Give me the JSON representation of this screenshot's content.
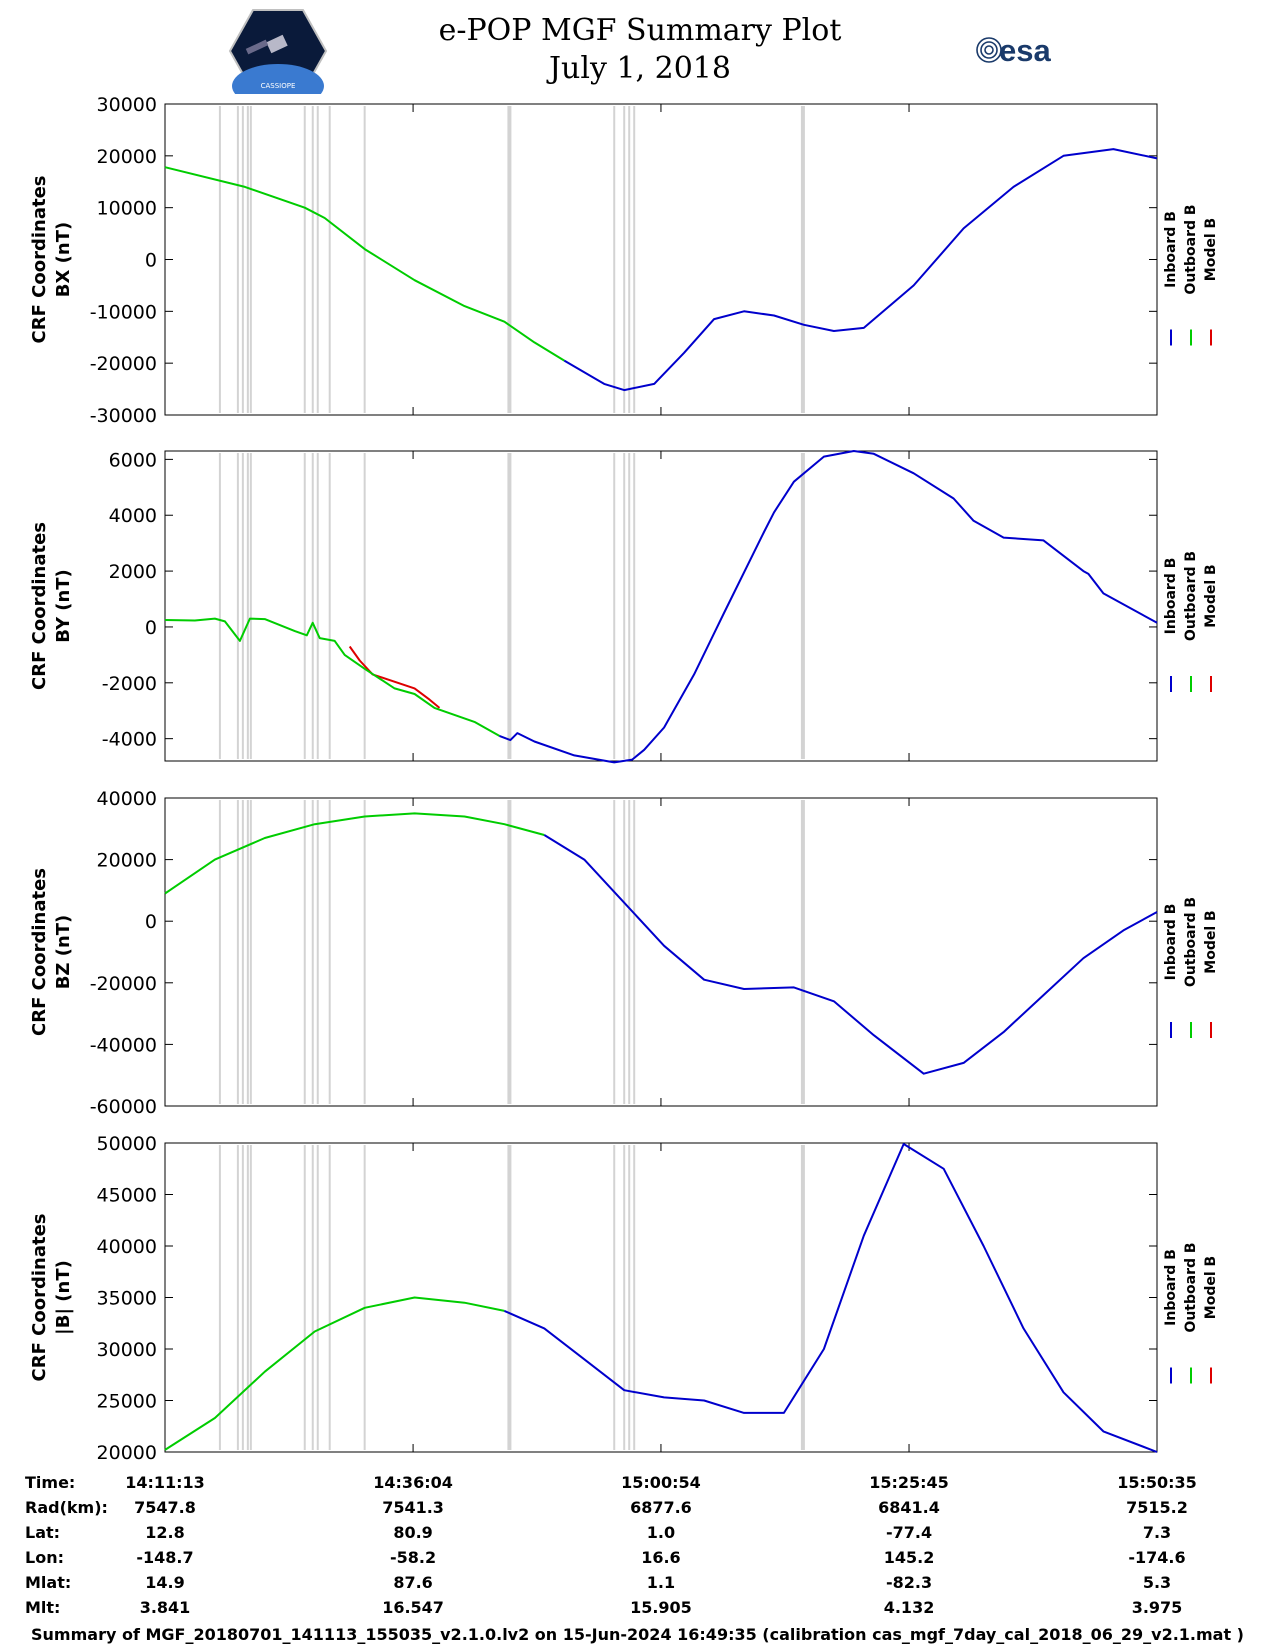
{
  "header": {
    "title_line1": "e-POP MGF Summary Plot",
    "title_line2": "July 1, 2018",
    "left_logo": "CASSIOPE",
    "right_logo": "esa"
  },
  "colors": {
    "inboard": "#0000cc",
    "outboard": "#00cc00",
    "model": "#dd0000",
    "mask": "#d3d3d3"
  },
  "chart_data": {
    "type": "line",
    "shared_x": {
      "time_range_min": [
        0,
        99.37
      ],
      "tick_positions_min": [
        0,
        24.85,
        49.68,
        74.53,
        99.37
      ],
      "tick_labels": [
        "14:11:13",
        "14:36:04",
        "15:00:54",
        "15:25:45",
        "15:50:35"
      ]
    },
    "legend": [
      "Inboard B",
      "Outboard B",
      "Model B"
    ],
    "gray_bands_min": [
      5.5,
      7.3,
      7.8,
      8.3,
      8.6,
      14,
      14.8,
      15.3,
      16.5,
      20,
      34.5,
      45,
      46,
      46.5,
      47,
      63.9
    ],
    "panels": [
      {
        "name": "BX",
        "ylabel_line1": "CRF Coordinates",
        "ylabel_line2": "BX (nT)",
        "ylim": [
          -30000,
          30000
        ],
        "yticks": [
          30000,
          20000,
          10000,
          0,
          -10000,
          -20000,
          -30000
        ],
        "ytick_labels": [
          "30000",
          "20000",
          "10000",
          "0",
          "-10000",
          "-20000",
          "-30000"
        ],
        "outboard": {
          "x": [
            0,
            8,
            14,
            16,
            20,
            25,
            30,
            34,
            37,
            40
          ],
          "y": [
            17800,
            14000,
            10000,
            8000,
            2000,
            -4000,
            -9000,
            -12000,
            -16000,
            -19500
          ]
        },
        "inboard": {
          "x": [
            40,
            44,
            46,
            49,
            52,
            55,
            58,
            61,
            64,
            67,
            70,
            75,
            80,
            85,
            90,
            95,
            99.37
          ],
          "y": [
            -19500,
            -24000,
            -25200,
            -24000,
            -18000,
            -11500,
            -10000,
            -10800,
            -12600,
            -13800,
            -13200,
            -5000,
            6000,
            14000,
            20000,
            21300,
            19500
          ]
        },
        "model": {
          "x": [],
          "y": []
        }
      },
      {
        "name": "BY",
        "ylabel_line1": "CRF Coordinates",
        "ylabel_line2": "BY (nT)",
        "ylim": [
          -4800,
          6300
        ],
        "yticks": [
          6000,
          4000,
          2000,
          0,
          -2000,
          -4000
        ],
        "ytick_labels": [
          "6000",
          "4000",
          "2000",
          "0",
          "-2000",
          "-4000"
        ],
        "outboard": {
          "x": [
            0,
            3,
            5,
            6,
            7.5,
            8.5,
            10,
            13,
            14.2,
            14.8,
            15.5,
            17,
            18,
            20,
            23,
            25,
            27,
            31,
            33.5
          ],
          "y": [
            250,
            230,
            300,
            200,
            -500,
            300,
            280,
            -150,
            -300,
            150,
            -400,
            -500,
            -1000,
            -1500,
            -2200,
            -2400,
            -2900,
            -3400,
            -3900
          ]
        },
        "inboard": {
          "x": [
            33.5,
            34.6,
            35.3,
            37,
            41,
            45,
            46.8,
            48,
            50,
            53,
            56,
            60,
            61,
            63,
            66,
            69,
            71,
            75,
            79,
            81,
            84,
            88,
            92,
            92.5,
            94,
            99.37
          ],
          "y": [
            -3900,
            -4050,
            -3800,
            -4100,
            -4600,
            -4850,
            -4750,
            -4400,
            -3600,
            -1700,
            500,
            3400,
            4100,
            5200,
            6100,
            6300,
            6200,
            5500,
            4600,
            3800,
            3200,
            3100,
            2000,
            1900,
            1200,
            150
          ]
        },
        "model": {
          "x": [
            18.5,
            19.5,
            20.8,
            25,
            26.5,
            27.5
          ],
          "y": [
            -700,
            -1200,
            -1700,
            -2200,
            -2600,
            -2900
          ]
        }
      },
      {
        "name": "BZ",
        "ylabel_line1": "CRF Coordinates",
        "ylabel_line2": "BZ (nT)",
        "ylim": [
          -60000,
          40000
        ],
        "yticks": [
          40000,
          20000,
          0,
          -20000,
          -40000,
          -60000
        ],
        "ytick_labels": [
          "40000",
          "20000",
          "0",
          "-20000",
          "-40000",
          "-60000"
        ],
        "outboard": {
          "x": [
            0,
            5,
            10,
            15,
            20,
            25,
            30,
            34,
            38
          ],
          "y": [
            9000,
            20000,
            27000,
            31500,
            34000,
            35000,
            34000,
            31500,
            28000
          ]
        },
        "inboard": {
          "x": [
            38,
            42,
            46,
            50,
            54,
            58,
            63,
            67,
            71,
            76,
            80,
            84,
            88,
            92,
            96,
            99.37
          ],
          "y": [
            28000,
            20000,
            6000,
            -8000,
            -19000,
            -22000,
            -21500,
            -26000,
            -37000,
            -49500,
            -46000,
            -36000,
            -24000,
            -12000,
            -3000,
            3000
          ]
        },
        "model": {
          "x": [],
          "y": []
        }
      },
      {
        "name": "|B|",
        "ylabel_line1": "CRF Coordinates",
        "ylabel_line2": "|B| (nT)",
        "ylim": [
          20000,
          50000
        ],
        "yticks": [
          50000,
          45000,
          40000,
          35000,
          30000,
          25000,
          20000
        ],
        "ytick_labels": [
          "50000",
          "45000",
          "40000",
          "35000",
          "30000",
          "25000",
          "20000"
        ],
        "outboard": {
          "x": [
            0,
            5,
            10,
            15,
            20,
            25,
            30,
            34
          ],
          "y": [
            20200,
            23300,
            27800,
            31700,
            34000,
            35000,
            34500,
            33700
          ]
        },
        "inboard": {
          "x": [
            34,
            38,
            42,
            46,
            50,
            54,
            58,
            62,
            66,
            70,
            74,
            78,
            82,
            86,
            90,
            94,
            99.37
          ],
          "y": [
            33700,
            32000,
            29000,
            26000,
            25300,
            25000,
            23800,
            23800,
            30000,
            41000,
            49900,
            47500,
            40000,
            32000,
            25800,
            22000,
            20000
          ]
        },
        "model": {
          "x": [],
          "y": []
        }
      }
    ],
    "ephemeris": {
      "rows": [
        {
          "label": "Time:",
          "values": [
            "14:11:13",
            "14:36:04",
            "15:00:54",
            "15:25:45",
            "15:50:35"
          ]
        },
        {
          "label": "Rad(km):",
          "values": [
            "7547.8",
            "7541.3",
            "6877.6",
            "6841.4",
            "7515.2"
          ]
        },
        {
          "label": "Lat:",
          "values": [
            "12.8",
            "80.9",
            "1.0",
            "-77.4",
            "7.3"
          ]
        },
        {
          "label": "Lon:",
          "values": [
            "-148.7",
            "-58.2",
            "16.6",
            "145.2",
            "-174.6"
          ]
        },
        {
          "label": "Mlat:",
          "values": [
            "14.9",
            "87.6",
            "1.1",
            "-82.3",
            "5.3"
          ]
        },
        {
          "label": "Mlt:",
          "values": [
            "3.841",
            "16.547",
            "15.905",
            "4.132",
            "3.975"
          ]
        }
      ]
    }
  },
  "footer": "Summary of MGF_20180701_141113_155035_v2.1.0.lv2 on 15-Jun-2024 16:49:35 (calibration cas_mgf_7day_cal_2018_06_29_v2.1.mat )"
}
